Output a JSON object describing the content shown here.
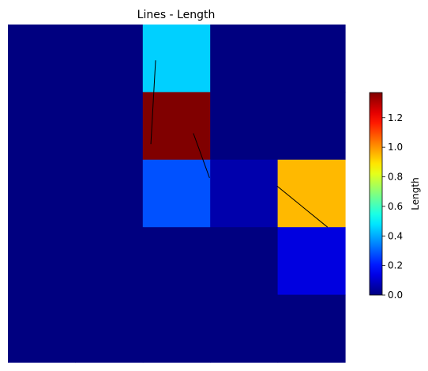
{
  "chart_data": {
    "type": "heatmap",
    "title": "Lines - Length",
    "grid": false,
    "rows": 5,
    "cols": 5,
    "cells": [
      [
        0.0,
        0.0,
        0.45,
        0.0,
        0.0
      ],
      [
        0.0,
        0.0,
        1.37,
        0.0,
        0.0
      ],
      [
        0.0,
        0.0,
        0.28,
        0.06,
        0.95
      ],
      [
        0.0,
        0.0,
        0.0,
        0.0,
        0.13
      ],
      [
        0.0,
        0.0,
        0.0,
        0.0,
        0.0
      ]
    ],
    "lines": [
      {
        "x": [
          2.19,
          2.12
        ],
        "y": [
          0.53,
          1.77
        ]
      },
      {
        "x": [
          2.75,
          2.99
        ],
        "y": [
          1.61,
          2.27
        ]
      },
      {
        "x": [
          3.99,
          4.74
        ],
        "y": [
          2.39,
          3.0
        ]
      }
    ],
    "colorbar": {
      "label": "Length",
      "colormap": "jet",
      "range": [
        0.0,
        1.37
      ],
      "ticks": [
        0.0,
        0.2,
        0.4,
        0.6,
        0.8,
        1.0,
        1.2
      ],
      "tick_labels": [
        "0.0",
        "0.2",
        "0.4",
        "0.6",
        "0.8",
        "1.0",
        "1.2"
      ],
      "position": "right"
    },
    "line_color": "#000000"
  }
}
